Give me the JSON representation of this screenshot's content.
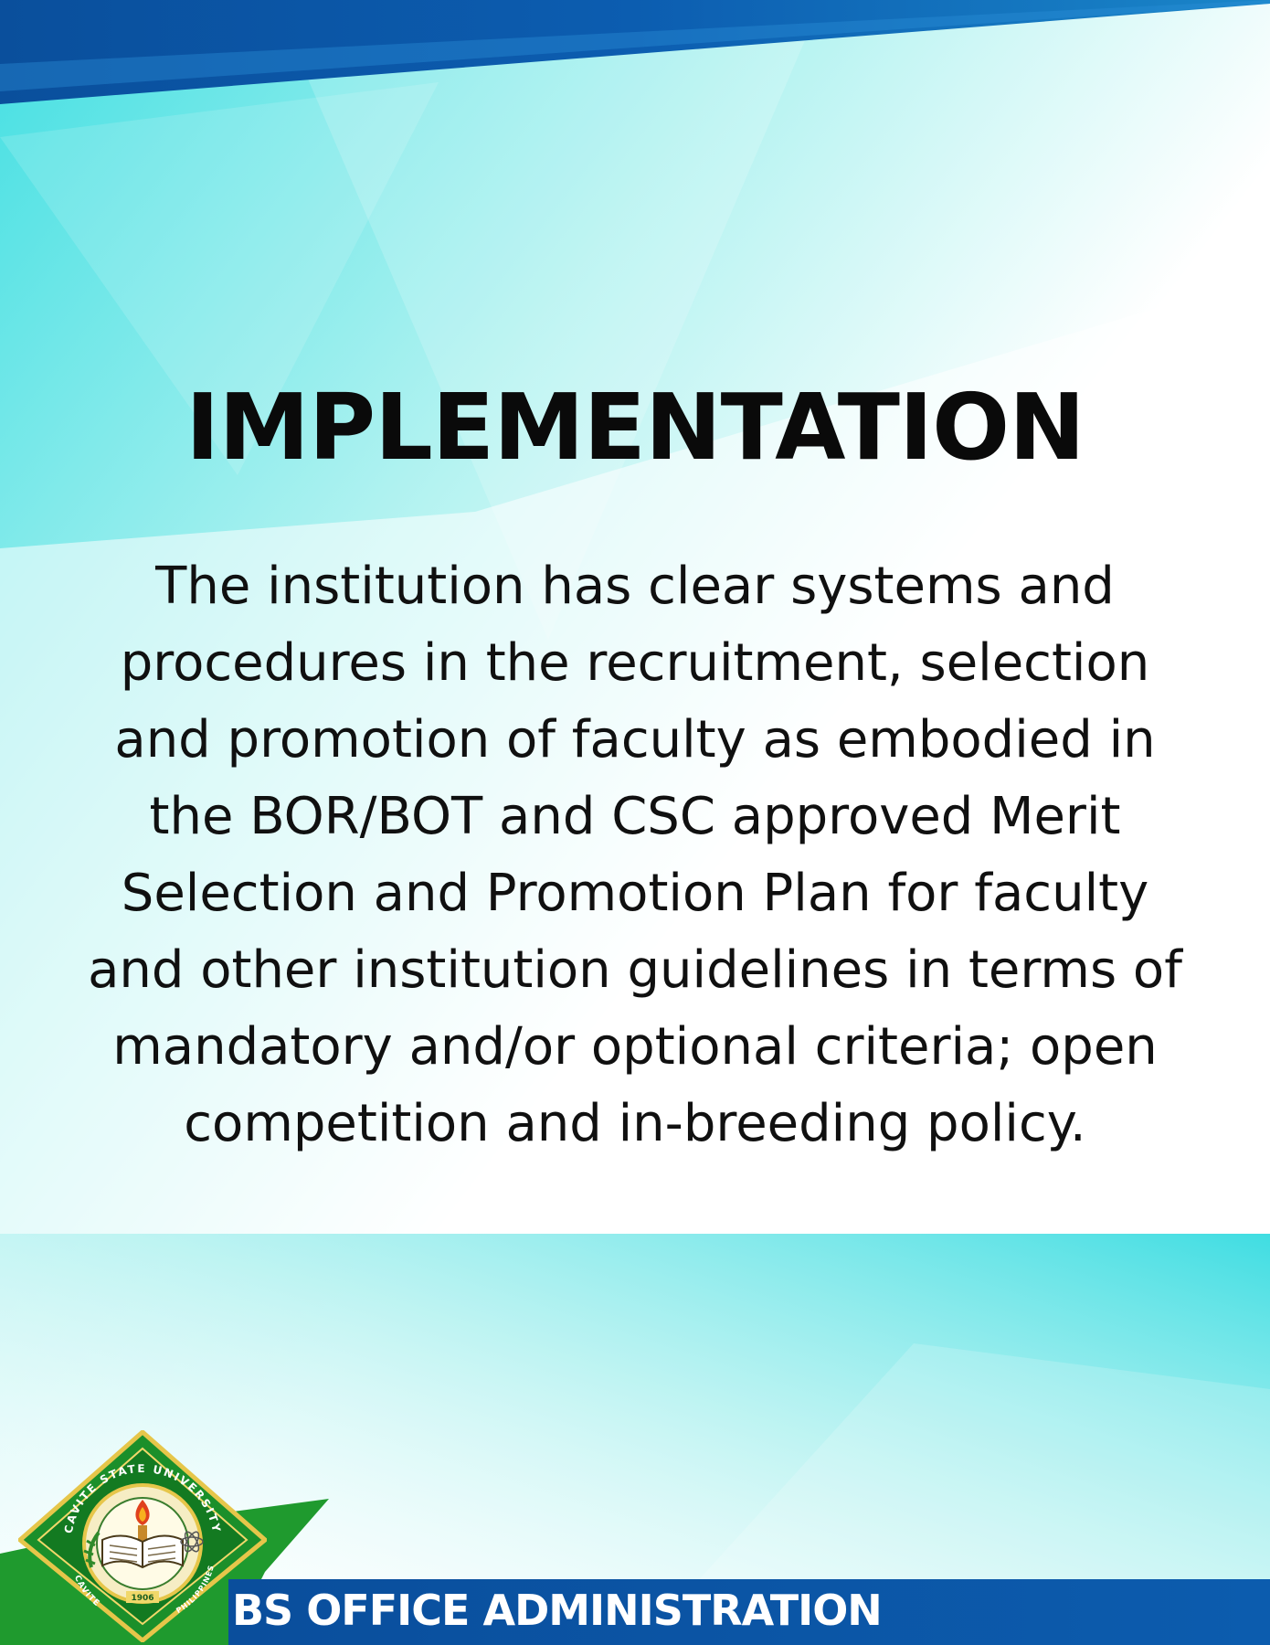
{
  "page": {
    "title": "IMPLEMENTATION",
    "body": "The institution has clear systems and procedures in the recruitment, selection and promotion of faculty as embodied in the BOR/BOT and CSC approved Merit Selection and Promotion Plan for faculty and other institution guidelines in terms of mandatory and/or optional criteria; open competition and in-breeding policy."
  },
  "footer": {
    "program": "BS OFFICE ADMINISTRATION",
    "seal": {
      "top_text": "CAVITE STATE UNIVERSITY",
      "bottom_left": "CAVITE",
      "bottom_right": "PHILIPPINES",
      "year": "1906"
    }
  },
  "colors": {
    "top_band": "#0c5aa6",
    "aqua": "#4ee3e0",
    "footer_blue": "#0b4fa3",
    "footer_green": "#1f9a2e",
    "text": "#0a0a0a"
  }
}
